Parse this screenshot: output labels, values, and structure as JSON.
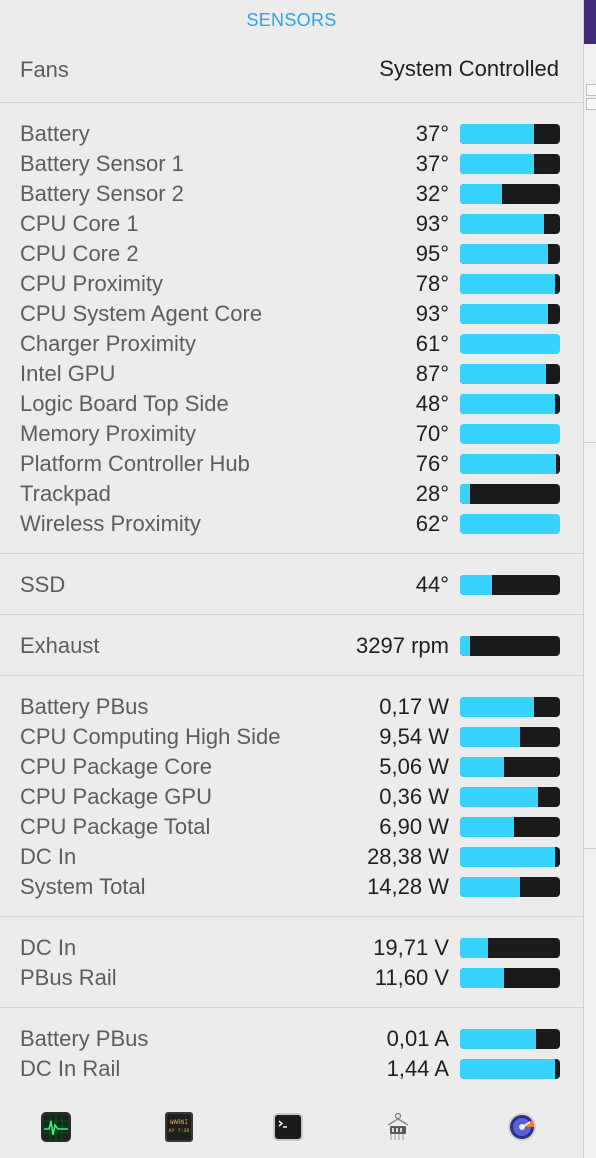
{
  "header": {
    "title": "SENSORS"
  },
  "fans": {
    "label": "Fans",
    "value": "System Controlled"
  },
  "colors": {
    "accent": "#27a2ee",
    "bar_fill": "#37d2fd",
    "bar_track": "#1a1a1a"
  },
  "groups": [
    {
      "rows": [
        {
          "name": "Battery",
          "value": "37°",
          "level": 0.74
        },
        {
          "name": "Battery Sensor 1",
          "value": "37°",
          "level": 0.74
        },
        {
          "name": "Battery Sensor 2",
          "value": "32°",
          "level": 0.42
        },
        {
          "name": "CPU Core 1",
          "value": "93°",
          "level": 0.84
        },
        {
          "name": "CPU Core 2",
          "value": "95°",
          "level": 0.88
        },
        {
          "name": "CPU Proximity",
          "value": "78°",
          "level": 0.95
        },
        {
          "name": "CPU System Agent Core",
          "value": "93°",
          "level": 0.88
        },
        {
          "name": "Charger Proximity",
          "value": "61°",
          "level": 1.0
        },
        {
          "name": "Intel GPU",
          "value": "87°",
          "level": 0.86
        },
        {
          "name": "Logic Board Top Side",
          "value": "48°",
          "level": 0.95
        },
        {
          "name": "Memory Proximity",
          "value": "70°",
          "level": 1.0
        },
        {
          "name": "Platform Controller Hub",
          "value": "76°",
          "level": 0.96
        },
        {
          "name": "Trackpad",
          "value": "28°",
          "level": 0.1
        },
        {
          "name": "Wireless Proximity",
          "value": "62°",
          "level": 1.0
        }
      ]
    },
    {
      "rows": [
        {
          "name": "SSD",
          "value": "44°",
          "level": 0.32
        }
      ]
    },
    {
      "rows": [
        {
          "name": "Exhaust",
          "value": "3297 rpm",
          "level": 0.1
        }
      ]
    },
    {
      "rows": [
        {
          "name": "Battery PBus",
          "value": "0,17 W",
          "level": 0.74
        },
        {
          "name": "CPU Computing High Side",
          "value": "9,54 W",
          "level": 0.6
        },
        {
          "name": "CPU Package Core",
          "value": "5,06 W",
          "level": 0.44
        },
        {
          "name": "CPU Package GPU",
          "value": "0,36 W",
          "level": 0.78
        },
        {
          "name": "CPU Package Total",
          "value": "6,90 W",
          "level": 0.54
        },
        {
          "name": "DC In",
          "value": "28,38 W",
          "level": 0.95
        },
        {
          "name": "System Total",
          "value": "14,28 W",
          "level": 0.6
        }
      ]
    },
    {
      "rows": [
        {
          "name": "DC In",
          "value": "19,71 V",
          "level": 0.28
        },
        {
          "name": "PBus Rail",
          "value": "11,60 V",
          "level": 0.44
        }
      ]
    },
    {
      "rows": [
        {
          "name": "Battery PBus",
          "value": "0,01 A",
          "level": 0.76
        },
        {
          "name": "DC In Rail",
          "value": "1,44 A",
          "level": 0.95
        }
      ]
    }
  ],
  "footer": {
    "icons": [
      "activity-monitor-icon",
      "console-icon",
      "terminal-icon",
      "system-information-icon",
      "disk-utility-icon"
    ],
    "console_text": [
      "WARNI",
      "AY 7:36"
    ]
  }
}
